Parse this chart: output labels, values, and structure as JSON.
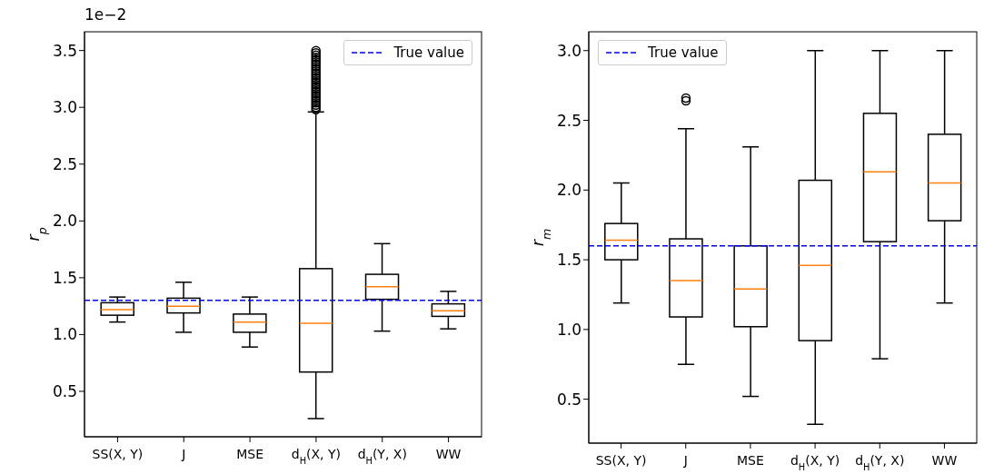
{
  "chart_data": [
    {
      "type": "box",
      "ylabel": "r$_{p}$",
      "annotations": [
        "1e−2"
      ],
      "categories": [
        "SS(X, Y)",
        "J",
        "MSE",
        "d$_{H}$(X, Y)",
        "d$_{H}$(Y, X)",
        "WW"
      ],
      "boxes": [
        {
          "low": 1.11,
          "q1": 1.17,
          "median": 1.22,
          "q3": 1.28,
          "high": 1.33
        },
        {
          "low": 1.02,
          "q1": 1.19,
          "median": 1.25,
          "q3": 1.32,
          "high": 1.46
        },
        {
          "low": 0.89,
          "q1": 1.02,
          "median": 1.11,
          "q3": 1.18,
          "high": 1.33
        },
        {
          "low": 0.26,
          "q1": 0.67,
          "median": 1.1,
          "q3": 1.58,
          "high": 2.96,
          "outliers": [
            2.98,
            3.0,
            3.02,
            3.04,
            3.06,
            3.08,
            3.1,
            3.12,
            3.14,
            3.16,
            3.18,
            3.2,
            3.22,
            3.24,
            3.26,
            3.28,
            3.3,
            3.32,
            3.34,
            3.36,
            3.38,
            3.4,
            3.42,
            3.44,
            3.46,
            3.48,
            3.5
          ]
        },
        {
          "low": 1.03,
          "q1": 1.31,
          "median": 1.42,
          "q3": 1.53,
          "high": 1.8
        },
        {
          "low": 1.05,
          "q1": 1.16,
          "median": 1.21,
          "q3": 1.27,
          "high": 1.38
        }
      ],
      "ylim": [
        0.1,
        3.665
      ],
      "yticks": [
        0.5,
        {
          "value": 1,
          "label": "1.0"
        },
        1.5,
        {
          "value": 2,
          "label": "2.0"
        },
        2.5,
        {
          "value": 3,
          "label": "3.0"
        },
        3.5
      ],
      "ref_lines": [
        {
          "axis": "y",
          "value": 1.3,
          "label": "True value",
          "color": "#0000ff",
          "line_style": "dashed"
        }
      ],
      "legend": "top right"
    },
    {
      "type": "box",
      "ylabel": "r$_{m}$",
      "categories": [
        "SS(X, Y)",
        "J",
        "MSE",
        "d$_{H}$(X, Y)",
        "d$_{H}$(Y, X)",
        "WW"
      ],
      "boxes": [
        {
          "low": 1.19,
          "q1": 1.5,
          "median": 1.64,
          "q3": 1.76,
          "high": 2.05
        },
        {
          "low": 0.75,
          "q1": 1.09,
          "median": 1.35,
          "q3": 1.65,
          "high": 2.44,
          "outliers": [
            2.64,
            2.66
          ]
        },
        {
          "low": 0.52,
          "q1": 1.02,
          "median": 1.29,
          "q3": 1.6,
          "high": 2.31
        },
        {
          "low": 0.32,
          "q1": 0.92,
          "median": 1.46,
          "q3": 2.07,
          "high": 3.0
        },
        {
          "low": 0.79,
          "q1": 1.63,
          "median": 2.13,
          "q3": 2.55,
          "high": 3.0
        },
        {
          "low": 1.19,
          "q1": 1.78,
          "median": 2.05,
          "q3": 2.4,
          "high": 3.0
        }
      ],
      "ylim": [
        0.185,
        3.135
      ],
      "yticks": [
        0.5,
        {
          "value": 1,
          "label": "1.0"
        },
        1.5,
        {
          "value": 2,
          "label": "2.0"
        },
        2.5,
        {
          "value": 3,
          "label": "3.0"
        }
      ],
      "ref_lines": [
        {
          "axis": "y",
          "value": 1.6,
          "label": "True value",
          "color": "#0000ff",
          "line_style": "dashed"
        }
      ],
      "legend": "top left"
    }
  ]
}
